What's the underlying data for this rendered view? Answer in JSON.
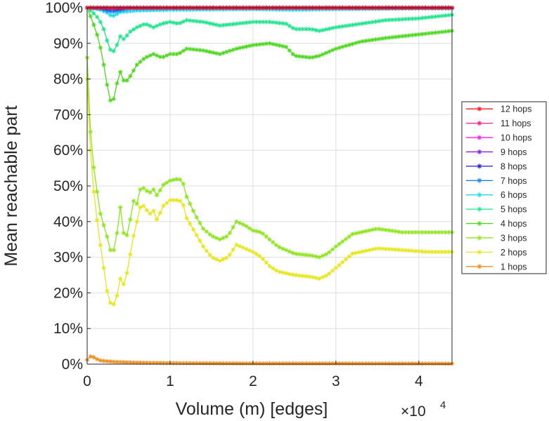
{
  "chart_data": {
    "type": "line",
    "xlabel": "Volume (m) [edges]",
    "ylabel": "Mean reachable part",
    "x_exponent_base": "×10",
    "x_exponent_power": "4",
    "xlim": [
      0,
      44000
    ],
    "ylim": [
      0,
      100
    ],
    "xticks": [
      0,
      10000,
      20000,
      30000,
      40000
    ],
    "xtick_labels": [
      "0",
      "1",
      "2",
      "3",
      "4"
    ],
    "yticks": [
      0,
      10,
      20,
      30,
      40,
      50,
      60,
      70,
      80,
      90,
      100
    ],
    "ytick_labels": [
      "0%",
      "10%",
      "20%",
      "30%",
      "40%",
      "50%",
      "60%",
      "70%",
      "80%",
      "90%",
      "100%"
    ],
    "grid": true,
    "legend_position": "right",
    "marker": "asterisk",
    "series": [
      {
        "name": "12 hops",
        "color": "#ff1a1a",
        "x": [
          0,
          44000
        ],
        "y": [
          100,
          100
        ]
      },
      {
        "name": "11 hops",
        "color": "#ff1a80",
        "x": [
          0,
          44000
        ],
        "y": [
          100,
          100
        ]
      },
      {
        "name": "10 hops",
        "color": "#f01ae6",
        "x": [
          0,
          44000
        ],
        "y": [
          100,
          100
        ]
      },
      {
        "name": "9 hops",
        "color": "#801ae6",
        "x": [
          0,
          44000
        ],
        "y": [
          100,
          100
        ]
      },
      {
        "name": "8 hops",
        "color": "#1a1ad9",
        "x": [
          0,
          1500,
          3000,
          5000,
          10000,
          20000,
          30000,
          44000
        ],
        "y": [
          100,
          100,
          99.6,
          100,
          100,
          100,
          100,
          100
        ]
      },
      {
        "name": "7 hops",
        "color": "#1a80f0",
        "x": [
          0,
          1500,
          3000,
          5000,
          10000,
          20000,
          30000,
          44000
        ],
        "y": [
          100,
          99.8,
          98.8,
          99.8,
          99.9,
          99.9,
          99.9,
          99.9
        ]
      },
      {
        "name": "6 hops",
        "color": "#1ad9f0",
        "x": [
          0,
          1500,
          2500,
          3000,
          4000,
          6000,
          10000,
          15000,
          20000,
          25000,
          30000,
          35000,
          40000,
          44000
        ],
        "y": [
          100,
          99.5,
          98.5,
          97.5,
          98.8,
          99.2,
          99.4,
          99.5,
          99.6,
          99.4,
          99.6,
          99.7,
          99.8,
          99.8
        ]
      },
      {
        "name": "5 hops",
        "color": "#1ae68c",
        "x": [
          0,
          1000,
          1500,
          2000,
          2500,
          3000,
          3500,
          4000,
          4500,
          5000,
          6000,
          7000,
          8000,
          9000,
          10000,
          11000,
          12000,
          14000,
          16000,
          18000,
          20000,
          22000,
          24000,
          25000,
          27000,
          28000,
          30000,
          33000,
          36000,
          40000,
          44000
        ],
        "y": [
          100,
          98,
          96.5,
          94,
          90,
          87,
          89,
          92,
          91,
          93,
          94.5,
          95.5,
          94.5,
          95.5,
          96,
          95.5,
          96.5,
          96,
          95,
          95.5,
          96,
          96,
          95.5,
          94,
          94,
          93.5,
          94.5,
          95.5,
          96.5,
          97,
          98
        ]
      },
      {
        "name": "4 hops",
        "color": "#4ad91a",
        "x": [
          0,
          1000,
          1500,
          2000,
          2500,
          3000,
          3500,
          4000,
          4500,
          5000,
          6000,
          7000,
          8000,
          9000,
          10000,
          11000,
          12000,
          14000,
          16000,
          18000,
          20000,
          22000,
          24000,
          25000,
          27000,
          28000,
          30000,
          33000,
          36000,
          40000,
          44000
        ],
        "y": [
          100,
          94,
          90,
          84,
          77,
          72,
          78,
          82,
          79,
          80,
          84,
          86,
          87,
          86,
          87,
          87,
          88.5,
          88,
          87,
          88.5,
          89.5,
          90,
          89,
          86.5,
          86,
          86.5,
          88.5,
          90.5,
          91.5,
          92.5,
          93.5
        ]
      },
      {
        "name": "3 hops",
        "color": "#8ce61a",
        "x": [
          0,
          500,
          1000,
          1500,
          2000,
          2500,
          3000,
          3500,
          4000,
          4500,
          5000,
          5500,
          6000,
          6500,
          7000,
          7500,
          8000,
          8500,
          9000,
          10000,
          11000,
          11500,
          12000,
          13000,
          14000,
          15000,
          16000,
          17000,
          18000,
          19000,
          20000,
          21000,
          22000,
          23000,
          25000,
          27000,
          28000,
          29000,
          30000,
          32000,
          35000,
          38000,
          41000,
          44000
        ],
        "y": [
          86,
          60,
          52,
          43,
          39,
          35,
          30,
          35,
          44,
          35,
          37,
          46,
          45,
          50,
          49,
          48,
          49,
          47,
          50,
          51.5,
          52,
          51.5,
          47,
          42,
          38,
          36,
          35,
          36,
          40,
          39,
          37.5,
          37,
          35,
          33,
          31,
          30.5,
          30,
          31,
          33,
          36.5,
          38,
          37,
          37,
          37
        ]
      },
      {
        "name": "2 hops",
        "color": "#e6e61a",
        "x": [
          0,
          500,
          1000,
          1500,
          2000,
          2500,
          3000,
          3500,
          4000,
          4500,
          5000,
          5500,
          6000,
          6500,
          7000,
          7500,
          8000,
          8500,
          9000,
          10000,
          11000,
          11500,
          12000,
          13000,
          14000,
          15000,
          16000,
          17000,
          18000,
          19000,
          20000,
          21000,
          22000,
          23000,
          25000,
          27000,
          28000,
          29000,
          30000,
          32000,
          35000,
          38000,
          41000,
          44000
        ],
        "y": [
          80,
          55,
          44,
          35,
          27,
          19,
          16,
          18,
          24,
          22,
          28,
          35,
          40,
          45,
          44,
          42,
          43,
          40,
          44,
          46,
          46,
          45.5,
          41,
          37,
          33,
          30,
          29,
          30,
          33.5,
          32.5,
          31.5,
          30,
          27.5,
          26,
          25,
          24.5,
          24,
          25,
          27,
          31,
          32.5,
          32,
          31.5,
          31.5
        ]
      },
      {
        "name": "1 hops",
        "color": "#f28c1a",
        "x": [
          0,
          500,
          1000,
          1500,
          2000,
          3000,
          4000,
          5000,
          7000,
          10000,
          20000,
          30000,
          44000
        ],
        "y": [
          1.2,
          2.4,
          1.6,
          1.1,
          0.9,
          0.7,
          0.6,
          0.5,
          0.4,
          0.3,
          0.2,
          0.2,
          0.15
        ]
      }
    ]
  }
}
